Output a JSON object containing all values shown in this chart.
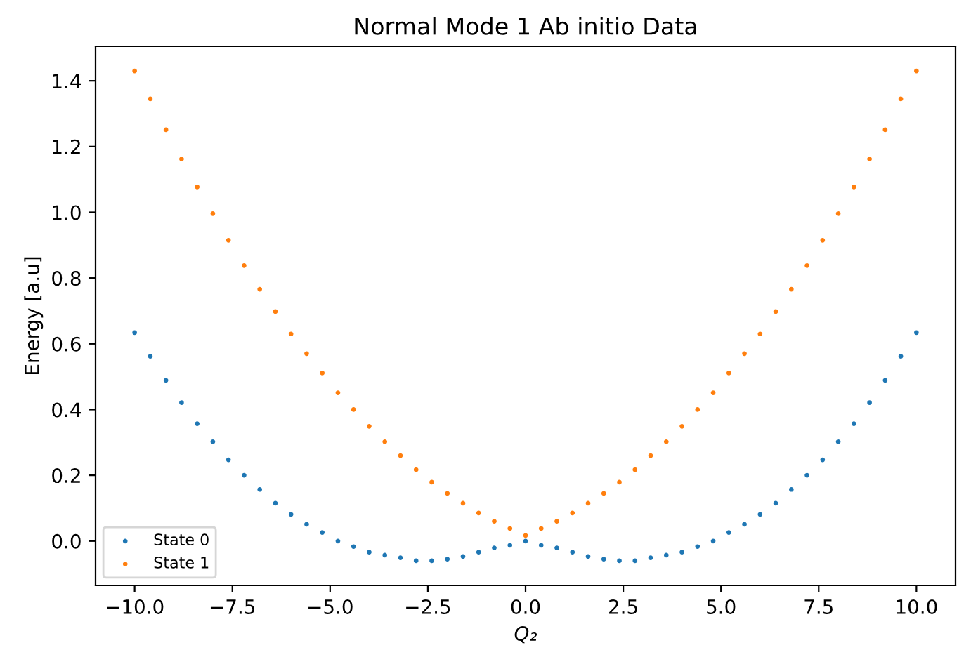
{
  "chart_data": {
    "type": "scatter",
    "title": "Normal Mode 1 Ab initio Data",
    "xlabel": "Q₂",
    "ylabel": "Energy [a.u]",
    "x": [
      -10,
      -9.6,
      -9.2,
      -8.8,
      -8.4,
      -8.0,
      -7.6,
      -7.2,
      -6.8,
      -6.4,
      -6.0,
      -5.6,
      -5.2,
      -4.8,
      -4.4,
      -4.0,
      -3.6,
      -3.2,
      -2.8,
      -2.4,
      -2.0,
      -1.6,
      -1.2,
      -0.8,
      -0.4,
      0,
      0.4,
      0.8,
      1.2,
      1.6,
      2.0,
      2.4,
      2.8,
      3.2,
      3.6,
      4.0,
      4.4,
      4.8,
      5.2,
      5.6,
      6.0,
      6.4,
      6.8,
      7.2,
      7.6,
      8.0,
      8.4,
      8.8,
      9.2,
      9.6,
      10
    ],
    "series": [
      {
        "name": "State 0",
        "color": "#1f77b4",
        "values": [
          0.634,
          0.562,
          0.489,
          0.421,
          0.357,
          0.302,
          0.247,
          0.2,
          0.157,
          0.115,
          0.081,
          0.051,
          0.026,
          0.0,
          -0.017,
          -0.034,
          -0.043,
          -0.051,
          -0.06,
          -0.06,
          -0.055,
          -0.047,
          -0.034,
          -0.021,
          -0.013,
          0.0,
          -0.013,
          -0.021,
          -0.034,
          -0.047,
          -0.055,
          -0.06,
          -0.06,
          -0.051,
          -0.043,
          -0.034,
          -0.017,
          0.0,
          0.026,
          0.051,
          0.081,
          0.115,
          0.157,
          0.2,
          0.247,
          0.302,
          0.357,
          0.421,
          0.489,
          0.562,
          0.634
        ]
      },
      {
        "name": "State 1",
        "color": "#ff7f0e",
        "values": [
          1.43,
          1.345,
          1.251,
          1.162,
          1.077,
          0.996,
          0.915,
          0.838,
          0.766,
          0.698,
          0.63,
          0.57,
          0.511,
          0.451,
          0.4,
          0.349,
          0.302,
          0.26,
          0.217,
          0.179,
          0.145,
          0.115,
          0.085,
          0.06,
          0.038,
          0.017,
          0.038,
          0.06,
          0.085,
          0.115,
          0.145,
          0.179,
          0.217,
          0.26,
          0.302,
          0.349,
          0.4,
          0.451,
          0.511,
          0.57,
          0.63,
          0.698,
          0.766,
          0.838,
          0.915,
          0.996,
          1.077,
          1.162,
          1.251,
          1.345,
          1.43
        ]
      }
    ],
    "xlim": [
      -11,
      11
    ],
    "ylim": [
      -0.135,
      1.505
    ],
    "xticks": [
      {
        "value": -10,
        "label": "−10.0"
      },
      {
        "value": -7.5,
        "label": "−7.5"
      },
      {
        "value": -5,
        "label": "−5.0"
      },
      {
        "value": -2.5,
        "label": "−2.5"
      },
      {
        "value": 0,
        "label": "0.0"
      },
      {
        "value": 2.5,
        "label": "2.5"
      },
      {
        "value": 5,
        "label": "5.0"
      },
      {
        "value": 7.5,
        "label": "7.5"
      },
      {
        "value": 10,
        "label": "10.0"
      }
    ],
    "yticks": [
      {
        "value": 0,
        "label": "0.0"
      },
      {
        "value": 0.2,
        "label": "0.2"
      },
      {
        "value": 0.4,
        "label": "0.4"
      },
      {
        "value": 0.6,
        "label": "0.6"
      },
      {
        "value": 0.8,
        "label": "0.8"
      },
      {
        "value": 1.0,
        "label": "1.0"
      },
      {
        "value": 1.2,
        "label": "1.2"
      },
      {
        "value": 1.4,
        "label": "1.4"
      }
    ],
    "legend": "bottom left",
    "marker": "circle",
    "grid": false
  }
}
